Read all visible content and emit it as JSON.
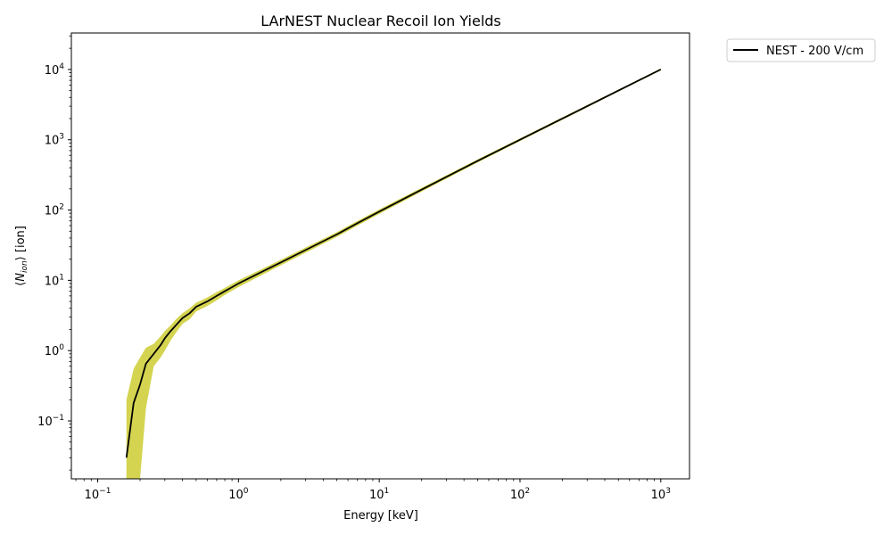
{
  "chart_data": {
    "type": "line",
    "title": "LArNEST Nuclear Recoil Ion Yields",
    "xlabel": "Energy [keV]",
    "ylabel": "⟨N_ion⟩ [ion]",
    "x_scale": "log",
    "y_scale": "log",
    "xlim": [
      0.065,
      1600
    ],
    "ylim": [
      0.015,
      33000
    ],
    "grid": false,
    "legend_position": "outside-top-right",
    "x_ticks": [
      {
        "base": "10",
        "exp": "−1",
        "value": 0.1
      },
      {
        "base": "10",
        "exp": "0",
        "value": 1
      },
      {
        "base": "10",
        "exp": "1",
        "value": 10
      },
      {
        "base": "10",
        "exp": "2",
        "value": 100
      },
      {
        "base": "10",
        "exp": "3",
        "value": 1000
      }
    ],
    "y_ticks": [
      {
        "base": "10",
        "exp": "−1",
        "value": 0.1
      },
      {
        "base": "10",
        "exp": "0",
        "value": 1
      },
      {
        "base": "10",
        "exp": "1",
        "value": 10
      },
      {
        "base": "10",
        "exp": "2",
        "value": 100
      },
      {
        "base": "10",
        "exp": "3",
        "value": 1000
      },
      {
        "base": "10",
        "exp": "4",
        "value": 10000
      }
    ],
    "series": [
      {
        "name": "NEST - 200 V/cm",
        "color": "#000000",
        "x": [
          0.16,
          0.18,
          0.2,
          0.22,
          0.25,
          0.28,
          0.3,
          0.33,
          0.36,
          0.4,
          0.45,
          0.5,
          0.6,
          0.7,
          0.8,
          1.0,
          1.5,
          2,
          3,
          5,
          7,
          10,
          20,
          50,
          100,
          200,
          500,
          1000
        ],
        "y": [
          0.03,
          0.18,
          0.33,
          0.65,
          0.9,
          1.2,
          1.5,
          1.9,
          2.3,
          2.9,
          3.4,
          4.2,
          5.0,
          6.0,
          7.0,
          9.0,
          13.5,
          18,
          27,
          45,
          65,
          95,
          195,
          500,
          1000,
          2000,
          5000,
          10000
        ]
      }
    ],
    "band": {
      "color": "#cccc33",
      "x": [
        0.16,
        0.18,
        0.2,
        0.22,
        0.25,
        0.28,
        0.3,
        0.33,
        0.36,
        0.4,
        0.45,
        0.5,
        0.6,
        0.7,
        0.8,
        1.0,
        1.5,
        2,
        3,
        5,
        7,
        10,
        20,
        50,
        100,
        200,
        500,
        1000
      ],
      "upper": [
        0.2,
        0.55,
        0.8,
        1.1,
        1.25,
        1.6,
        1.9,
        2.3,
        2.8,
        3.4,
        4.0,
        4.8,
        5.7,
        6.8,
        7.8,
        10.0,
        14.8,
        19.6,
        29.3,
        48.5,
        70,
        102,
        207,
        525,
        1045,
        2080,
        5170,
        10330
      ],
      "lower": [
        0.015,
        0.015,
        0.015,
        0.15,
        0.6,
        0.8,
        1.0,
        1.4,
        1.8,
        2.4,
        2.8,
        3.6,
        4.3,
        5.2,
        6.2,
        8.0,
        12.2,
        16.4,
        24.7,
        41.5,
        60,
        88,
        183,
        475,
        955,
        1920,
        4830,
        9670
      ]
    }
  }
}
